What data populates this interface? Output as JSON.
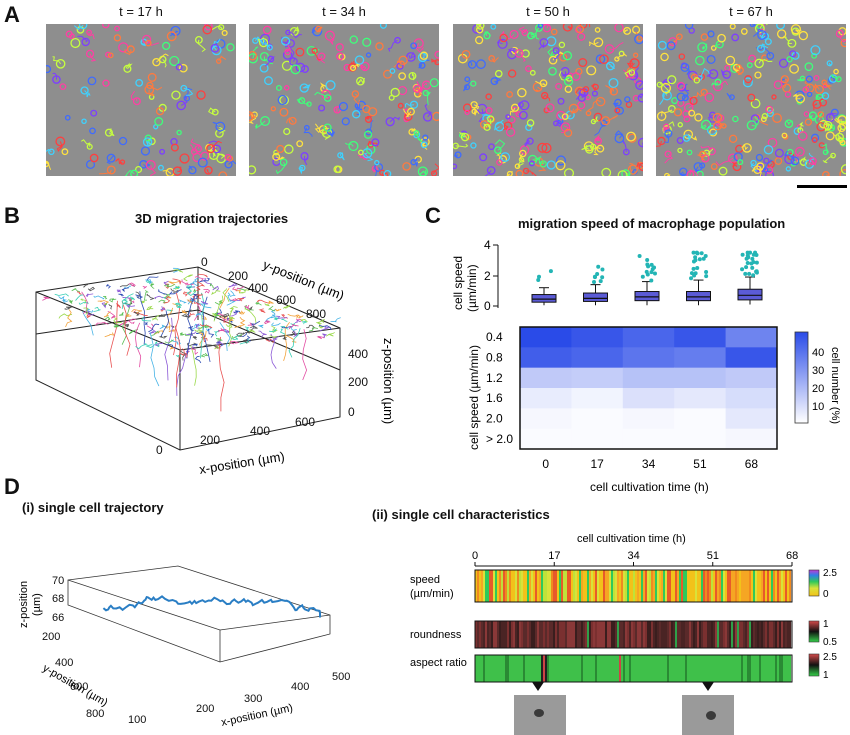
{
  "panel_a": {
    "letter": "A",
    "time_labels": [
      "t = 17 h",
      "t = 34 h",
      "t = 50 h",
      "t = 67 h"
    ]
  },
  "panel_b": {
    "letter": "B",
    "title": "3D migration trajectories",
    "y_axis_label": "y-position (µm)",
    "y_ticks": [
      "0",
      "200",
      "400",
      "600",
      "800"
    ],
    "x_axis_label": "x-position (µm)",
    "x_ticks": [
      "0",
      "200",
      "400",
      "600"
    ],
    "z_axis_label": "z-position (µm)",
    "z_ticks": [
      "400",
      "200",
      "0"
    ]
  },
  "panel_c": {
    "letter": "C",
    "title": "migration speed of macrophage population",
    "box_ylabel_1": "cell speed",
    "box_ylabel_2": "(µm/min)",
    "box_yticks": [
      "4",
      "2",
      "0"
    ],
    "heat_ylabel": "cell speed (µm/min)",
    "heat_rows": [
      "0.4",
      "0.8",
      "1.2",
      "1.6",
      "2.0",
      "> 2.0"
    ],
    "heat_cols": [
      "0",
      "17",
      "34",
      "51",
      "68"
    ],
    "heat_xlabel": "cell cultivation time (h)",
    "colorbar_label": "cell number (%)",
    "colorbar_ticks": [
      "40",
      "30",
      "20",
      "10"
    ]
  },
  "panel_d": {
    "letter": "D",
    "sub_i": "(i)  single cell trajectory",
    "sub_ii": "(ii)  single cell characteristics",
    "traj_z_label_1": "z-position",
    "traj_z_label_2": "(µm)",
    "traj_z_ticks": [
      "70",
      "68",
      "66"
    ],
    "traj_y_label": "y-position (µm)",
    "traj_y_ticks": [
      "200",
      "400",
      "600",
      "800"
    ],
    "traj_x_label": "x-position (µm)",
    "traj_x_ticks": [
      "100",
      "200",
      "300",
      "400",
      "500"
    ],
    "time_axis_label": "cell cultivation time (h)",
    "time_ticks": [
      "0",
      "17",
      "34",
      "51",
      "68"
    ],
    "row_speed_1": "speed",
    "row_speed_2": "(µm/min)",
    "row_roundness": "roundness",
    "row_aspect": "aspect ratio",
    "speed_scale": [
      "2.5",
      "0"
    ],
    "roundness_scale": [
      "1",
      "0.5"
    ],
    "aspect_scale": [
      "2.5",
      "1"
    ]
  },
  "chart_data": [
    {
      "type": "box",
      "title": "migration speed of macrophage population",
      "xlabel": "cell cultivation time (h)",
      "ylabel": "cell speed (µm/min)",
      "categories": [
        "0",
        "17",
        "34",
        "51",
        "68"
      ],
      "ylim": [
        0,
        4
      ],
      "series": [
        {
          "median": [
            0.45,
            0.5,
            0.6,
            0.6,
            0.7
          ],
          "q1": [
            0.25,
            0.3,
            0.35,
            0.35,
            0.4
          ],
          "q3": [
            0.75,
            0.85,
            0.95,
            0.95,
            1.1
          ],
          "whisker_low": [
            0.05,
            0.05,
            0.05,
            0.05,
            0.1
          ],
          "whisker_high": [
            1.2,
            1.4,
            1.6,
            1.7,
            1.9
          ]
        }
      ]
    },
    {
      "type": "heatmap",
      "xlabel": "cell cultivation time (h)",
      "ylabel": "cell speed (µm/min)",
      "columns": [
        "0",
        "17",
        "34",
        "51",
        "68"
      ],
      "rows": [
        "0.4",
        "0.8",
        "1.2",
        "1.6",
        "2.0",
        "> 2.0"
      ],
      "values": [
        [
          47,
          44,
          40,
          44,
          32
        ],
        [
          42,
          40,
          36,
          34,
          44
        ],
        [
          14,
          13,
          16,
          16,
          14
        ],
        [
          5,
          3,
          8,
          6,
          9
        ],
        [
          2,
          1,
          2,
          1,
          6
        ],
        [
          1,
          1,
          1,
          1,
          2
        ]
      ],
      "colorbar_label": "cell number (%)"
    }
  ]
}
